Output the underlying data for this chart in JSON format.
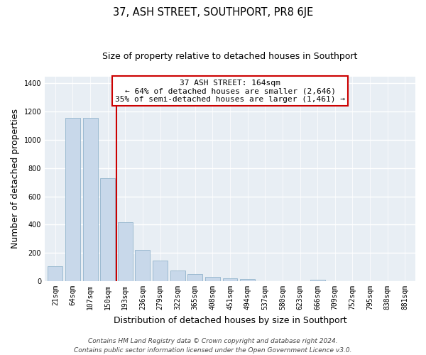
{
  "title": "37, ASH STREET, SOUTHPORT, PR8 6JE",
  "subtitle": "Size of property relative to detached houses in Southport",
  "xlabel": "Distribution of detached houses by size in Southport",
  "ylabel": "Number of detached properties",
  "bar_labels": [
    "21sqm",
    "64sqm",
    "107sqm",
    "150sqm",
    "193sqm",
    "236sqm",
    "279sqm",
    "322sqm",
    "365sqm",
    "408sqm",
    "451sqm",
    "494sqm",
    "537sqm",
    "580sqm",
    "623sqm",
    "666sqm",
    "709sqm",
    "752sqm",
    "795sqm",
    "838sqm",
    "881sqm"
  ],
  "bar_values": [
    105,
    1155,
    1155,
    730,
    415,
    220,
    145,
    75,
    50,
    30,
    18,
    15,
    0,
    0,
    0,
    10,
    0,
    0,
    0,
    0,
    0
  ],
  "bar_color": "#c8d8ea",
  "bar_edge_color": "#92b4cc",
  "vline_x": 3.5,
  "vline_color": "#cc0000",
  "annotation_line1": "37 ASH STREET: 164sqm",
  "annotation_line2": "← 64% of detached houses are smaller (2,646)",
  "annotation_line3": "35% of semi-detached houses are larger (1,461) →",
  "annotation_box_color": "#ffffff",
  "annotation_box_edge": "#cc0000",
  "ylim": [
    0,
    1450
  ],
  "yticks": [
    0,
    200,
    400,
    600,
    800,
    1000,
    1200,
    1400
  ],
  "footer_line1": "Contains HM Land Registry data © Crown copyright and database right 2024.",
  "footer_line2": "Contains public sector information licensed under the Open Government Licence v3.0.",
  "fig_background": "#ffffff",
  "plot_background": "#e8eef4",
  "grid_color": "#ffffff",
  "title_fontsize": 10.5,
  "subtitle_fontsize": 9,
  "axis_label_fontsize": 9,
  "tick_fontsize": 7,
  "annotation_fontsize": 8,
  "footer_fontsize": 6.5
}
